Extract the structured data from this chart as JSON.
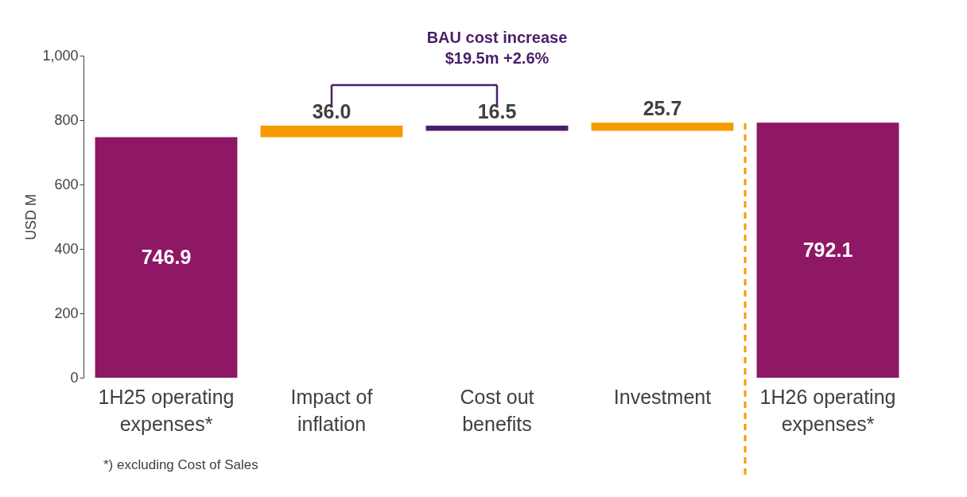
{
  "chart_data": {
    "type": "bar",
    "categories": [
      "1H25 operating expenses*",
      "Impact of inflation",
      "Cost out benefits",
      "Investment",
      "1H26 operating expenses*"
    ],
    "values": [
      746.9,
      36.0,
      16.5,
      25.7,
      792.1
    ],
    "base": [
      0,
      746.9,
      766.4,
      766.4,
      0
    ],
    "colors": [
      "#8e1766",
      "#f59b00",
      "#4a1f68",
      "#f59b00",
      "#8e1766"
    ],
    "value_labels": [
      "746.9",
      "36.0",
      "16.5",
      "25.7",
      "792.1"
    ],
    "ylabel": "USD M",
    "ylim": [
      0,
      1000
    ],
    "yticks": [
      0,
      200,
      400,
      600,
      800,
      {
        "value": 1000,
        "label": "1,000"
      }
    ],
    "grid": false,
    "ref_lines": [
      {
        "axis": "x",
        "value": "1H26 operating expenses*",
        "label": null,
        "color": "#f59b00",
        "line_style": "dashed"
      }
    ],
    "annotations": [
      "BAU cost increase",
      "$19.5m +2.6%",
      "*) excluding Cost of Sales"
    ]
  }
}
